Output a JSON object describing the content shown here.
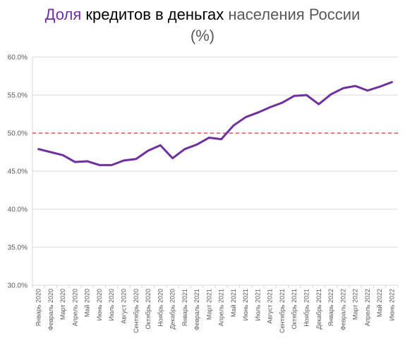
{
  "title": {
    "part1": "Доля",
    "part2": " кредитов в деньгах ",
    "part3": "населения России",
    "line2": "(%)"
  },
  "colors": {
    "accent": "#7030a0",
    "line": "#7030a0",
    "reference": "#c00000",
    "grid": "#d9d9d9",
    "axis_text": "#595959"
  },
  "chart_data": {
    "type": "line",
    "title": "Доля кредитов в деньгах населения России (%)",
    "xlabel": "",
    "ylabel": "",
    "ylim": [
      30.0,
      60.0
    ],
    "y_ticks": [
      "30.0%",
      "35.0%",
      "40.0%",
      "45.0%",
      "50.0%",
      "55.0%",
      "60.0%"
    ],
    "grid": true,
    "legend": "none",
    "reference_line": {
      "y": 50.0,
      "style": "dashed"
    },
    "categories": [
      "Январь 2020",
      "Февраль 2020",
      "Март 2020",
      "Апрель 2020",
      "Май 2020",
      "Июнь 2020",
      "Июль 2020",
      "Август 2020",
      "Сентябрь 2020",
      "Октябрь 2020",
      "Ноябрь 2020",
      "Декабрь 2020",
      "Январь 2021",
      "Февраль 2021",
      "Март 2021",
      "Апрель 2021",
      "Май 2021",
      "Июнь 2021",
      "Июль 2021",
      "Август 2021",
      "Сентябрь 2021",
      "Октябрь 2021",
      "Ноябрь 2021",
      "Декабрь 2021",
      "Январь 2022",
      "Февраль 2022",
      "Март 2022",
      "Апрель 2022",
      "Май 2022",
      "Июнь 2022"
    ],
    "values": [
      47.9,
      47.5,
      47.1,
      46.2,
      46.3,
      45.8,
      45.8,
      46.4,
      46.6,
      47.7,
      48.4,
      46.7,
      47.9,
      48.5,
      49.4,
      49.2,
      51.0,
      52.1,
      52.7,
      53.4,
      54.0,
      54.9,
      55.0,
      53.8,
      55.1,
      55.9,
      56.2,
      55.6,
      56.1,
      56.7
    ]
  }
}
